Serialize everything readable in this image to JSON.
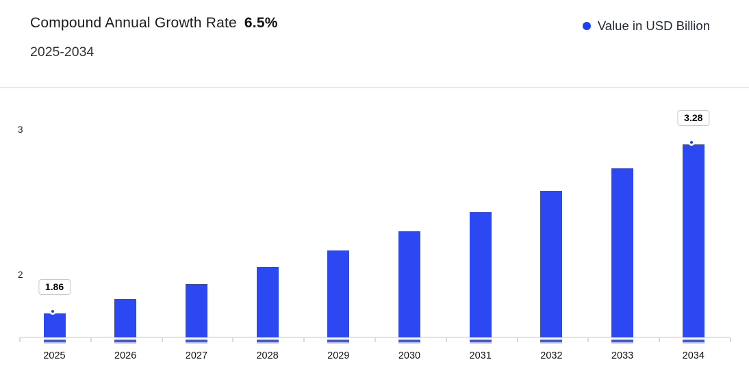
{
  "header": {
    "title": "Compound Annual Growth Rate",
    "cagr_value": "6.5%",
    "subtitle": "2025-2034",
    "legend": {
      "label": "Value in USD Billion",
      "marker_color": "#1c40f2"
    }
  },
  "chart_data": {
    "type": "bar",
    "title": "Compound Annual Growth Rate 6.5% 2025-2034",
    "categories": [
      "2025",
      "2026",
      "2027",
      "2028",
      "2029",
      "2030",
      "2031",
      "2032",
      "2033",
      "2034"
    ],
    "series": [
      {
        "name": "Value in USD Billion",
        "values": [
          1.86,
          1.98,
          2.11,
          2.25,
          2.39,
          2.55,
          2.71,
          2.89,
          3.08,
          3.28
        ]
      }
    ],
    "visible_point_labels": [
      {
        "category": "2025",
        "value": "1.86"
      },
      {
        "category": "2034",
        "value": "3.28"
      }
    ],
    "yticks": [
      "2",
      "3"
    ],
    "xlabel": "",
    "ylabel": "",
    "grid": false,
    "legend_position": "top-right",
    "bar_color": "#2b48f2",
    "marker_color": "#1e40f0",
    "axis_color": "#e4e4e4"
  }
}
